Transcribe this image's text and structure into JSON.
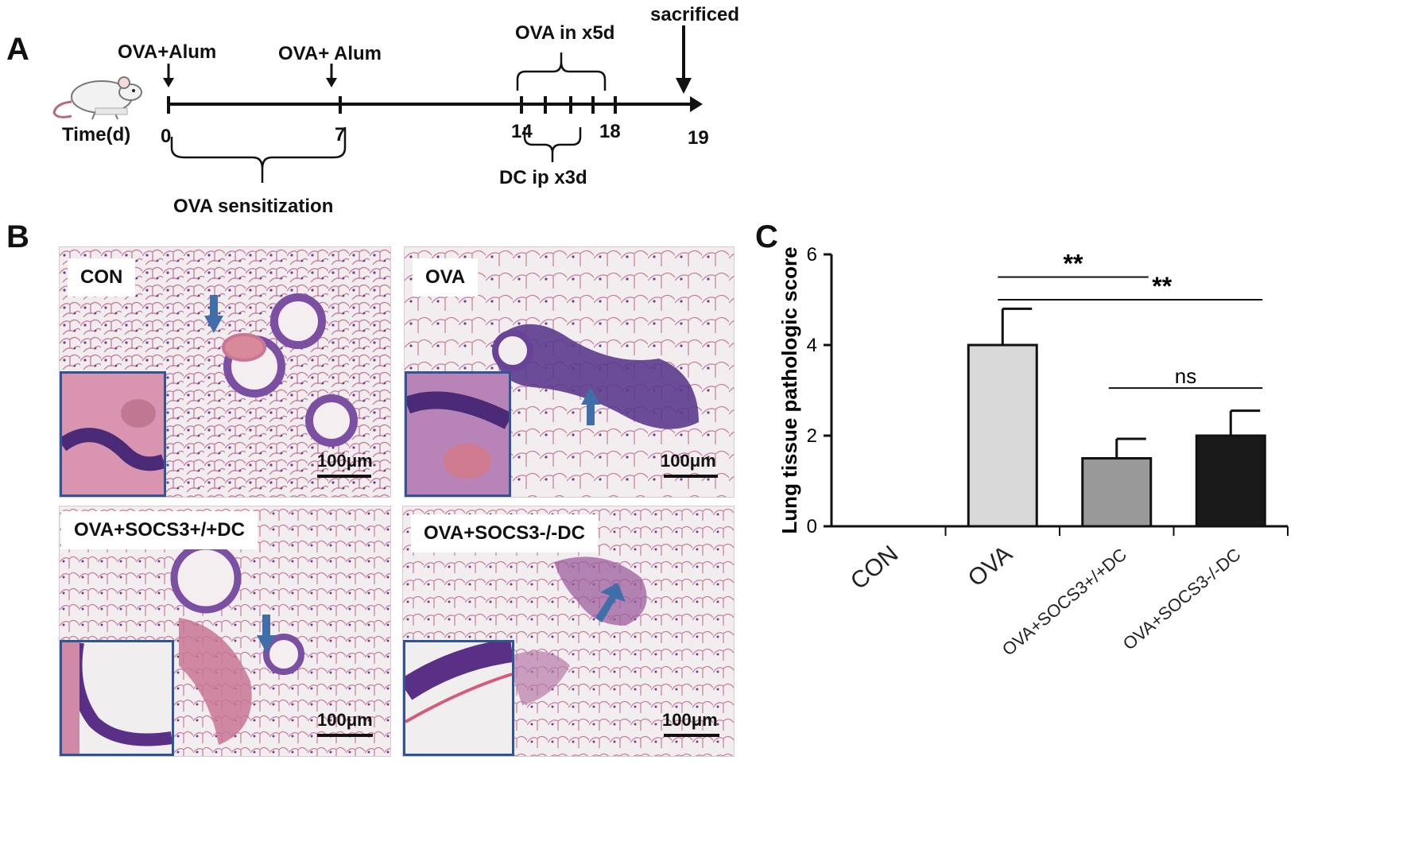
{
  "panel_a": {
    "letter": "A",
    "time_label": "Time(d)",
    "sacrificed": "sacrificed",
    "ova_alum_1": "OVA+Alum",
    "ova_alum_2": "OVA+ Alum",
    "ova_in": "OVA in x5d",
    "dc_ip": "DC ip x3d",
    "ova_sensitization": "OVA sensitization",
    "ticks": [
      "0",
      "7",
      "14",
      "18",
      "19"
    ]
  },
  "panel_b": {
    "letter": "B",
    "images": [
      {
        "label": "CON",
        "scale": "100μm"
      },
      {
        "label": "OVA",
        "scale": "100μm"
      },
      {
        "label": "OVA+SOCS3+/+DC",
        "scale": "100μm"
      },
      {
        "label": "OVA+SOCS3-/-DC",
        "scale": "100μm"
      }
    ]
  },
  "panel_c": {
    "letter": "C",
    "colors": {
      "CON": "#ffffff",
      "OVA": "#d9d9d9",
      "OVA+SOCS3+/+DC": "#999999",
      "OVA+SOCS3-/-DC": "#1a1a1a"
    }
  },
  "chart_data": {
    "type": "bar",
    "ylabel": "Lung tissue pathologic score",
    "ylim": [
      0,
      6
    ],
    "yticks": [
      "0",
      "2",
      "4",
      "6"
    ],
    "categories": [
      "CON",
      "OVA",
      "OVA+SOCS3+/+DC",
      "OVA+SOCS3-/-DC"
    ],
    "values": [
      0,
      4.0,
      1.5,
      2.0
    ],
    "errors": [
      0,
      0.8,
      0.43,
      0.55
    ],
    "significance": [
      {
        "from": "OVA",
        "to": "OVA+SOCS3+/+DC",
        "label": "**"
      },
      {
        "from": "OVA",
        "to": "OVA+SOCS3-/-DC",
        "label": "**"
      },
      {
        "from": "OVA+SOCS3+/+DC",
        "to": "OVA+SOCS3-/-DC",
        "label": "ns"
      }
    ]
  }
}
